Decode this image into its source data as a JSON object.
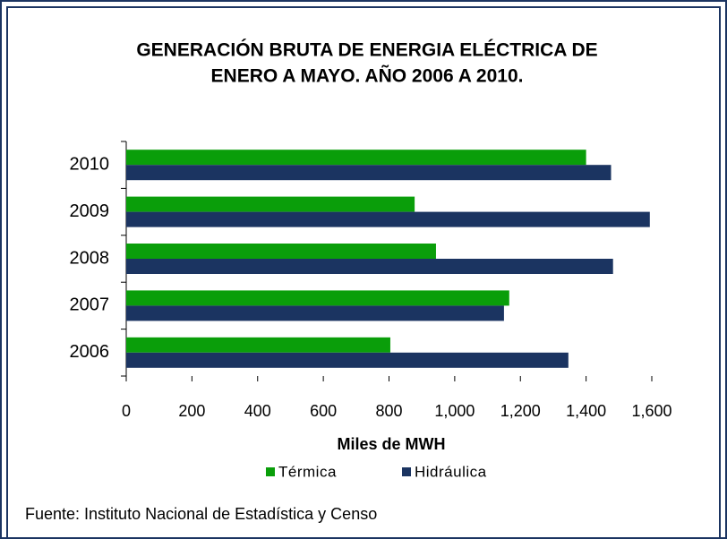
{
  "chart_data": {
    "type": "hbar",
    "title": [
      "GENERACIÓN BRUTA DE ENERGIA ELÉCTRICA DE",
      "ENERO A MAYO.  AÑO 2006 A 2010."
    ],
    "categories": [
      "2006",
      "2007",
      "2008",
      "2009",
      "2010"
    ],
    "series": [
      {
        "name": "Térmica",
        "color": "#0a9e0a",
        "values": [
          804,
          1166,
          943,
          878,
          1400
        ]
      },
      {
        "name": "Hidráulica",
        "color": "#1b3461",
        "values": [
          1346,
          1150,
          1482,
          1594,
          1476
        ]
      }
    ],
    "xlim": [
      0,
      1600
    ],
    "xticks": [
      0,
      200,
      400,
      600,
      800,
      {
        "value": 1000,
        "label": "1,000"
      },
      {
        "value": 1200,
        "label": "1,200"
      },
      {
        "value": 1400,
        "label": "1,400"
      },
      {
        "value": 1600,
        "label": "1,600"
      }
    ],
    "xlabel": "Miles de MWH",
    "source": "Fuente: Instituto Nacional de Estadística y Censo",
    "legend": "bottom"
  }
}
